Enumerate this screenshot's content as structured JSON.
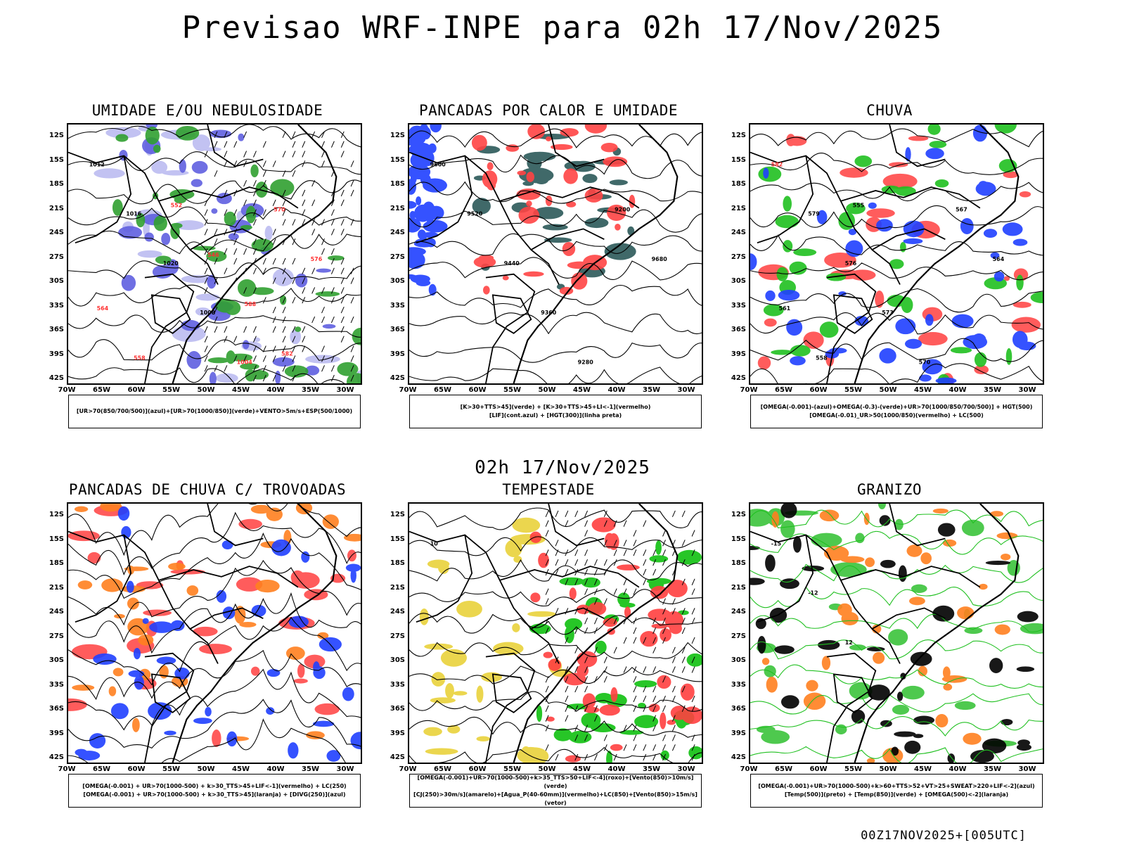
{
  "header": {
    "title": "Previsao WRF-INPE  para 02h 17/Nov/2025",
    "subtitle": "02h 17/Nov/2025",
    "footer": "00Z17NOV2025+[005UTC]"
  },
  "axes": {
    "lat_labels": [
      "12S",
      "15S",
      "18S",
      "21S",
      "24S",
      "27S",
      "30S",
      "33S",
      "36S",
      "39S",
      "42S"
    ],
    "lon_labels": [
      "70W",
      "65W",
      "60W",
      "55W",
      "50W",
      "45W",
      "40W",
      "35W",
      "30W"
    ]
  },
  "panels": [
    {
      "id": "umidade",
      "title": "UMIDADE E/OU NEBULOSIDADE",
      "legend": [
        "[UR>70(850/700/500)](azul)+[UR>70(1000/850)](verde)+VENTO>5m/s+ESP(500/1000)"
      ],
      "fills": [
        "#b8b8f0",
        "#6060e0",
        "#30a030"
      ],
      "contour_labels": [
        "1012",
        "1016",
        "1020",
        "1008",
        "1004",
        "570",
        "576",
        "564",
        "558",
        "552",
        "546",
        "588",
        "582"
      ]
    },
    {
      "id": "pancadas-calor",
      "title": "PANCADAS POR CALOR E UMIDADE",
      "legend": [
        "[K>30+TTS>45](verde) + [K>30+TTS>45+LI<-1](vermelho)",
        "[LIF](cont.azul) + [HGT(300)](linha preta)"
      ],
      "fills": [
        "#1f4f4f",
        "#ff4444",
        "#2040ff"
      ],
      "contour_labels": [
        "9600",
        "9520",
        "9440",
        "9360",
        "9280",
        "9200",
        "9680"
      ]
    },
    {
      "id": "chuva",
      "title": "CHUVA",
      "legend": [
        "[OMEGA(-0.001)-(azul)+OMEGA(-0.3)-(verde)+UR>70(1000/850/700/500)] + HGT(500)",
        "[OMEGA(-0.01)_UR>50(1000/850)(vermelho) + LC(500)"
      ],
      "fills": [
        "#ff4040",
        "#20c020",
        "#2040ff"
      ],
      "contour_labels": [
        "582",
        "579",
        "576",
        "573",
        "570",
        "567",
        "564",
        "561",
        "558",
        "555"
      ]
    },
    {
      "id": "pancadas-trovoadas",
      "title": "PANCADAS DE CHUVA C/ TROVOADAS",
      "legend": [
        "[OMEGA(-0.001) + UR>70(1000-500) + k>30_TTS>45+LIF<-1](vermelho) + LC(250)",
        "[OMEGA(-0.001) + UR>70(1000-500) + k>30_TTS>45](laranja) + [DIVG(250)](azul)"
      ],
      "fills": [
        "#ff4040",
        "#ff8020",
        "#2040ff"
      ],
      "contour_labels": []
    },
    {
      "id": "tempestade",
      "title": "TEMPESTADE",
      "legend": [
        "[OMEGA(-0.001)+UR>70(1000-500)+k>35_TTS>50+LIF<-4](roxo)+[Vento(850)>10m/s](verde)",
        "[CJ(250)>30m/s](amarelo)+[Agua_P(40-60mm)](vermelho)+LC(850)+[Vento(850)>15m/s](vetor)"
      ],
      "fills": [
        "#e8d030",
        "#10c010",
        "#ff4040"
      ],
      "contour_labels": [
        "10"
      ]
    },
    {
      "id": "granizo",
      "title": "GRANIZO",
      "legend": [
        "[OMEGA(-0.001)+UR>70(1000-500)+k>60+TTS>52+VT>25+SWEAT>220+LIF<-2](azul)",
        "[Temp(500)](preto) + [Temp(850)](verde) + [OMEGA(500)<-2](laranja)"
      ],
      "fills": [
        "#30c030",
        "#ff8020",
        "#000000"
      ],
      "contour_labels": [
        "-15",
        "-12",
        "12"
      ]
    }
  ]
}
